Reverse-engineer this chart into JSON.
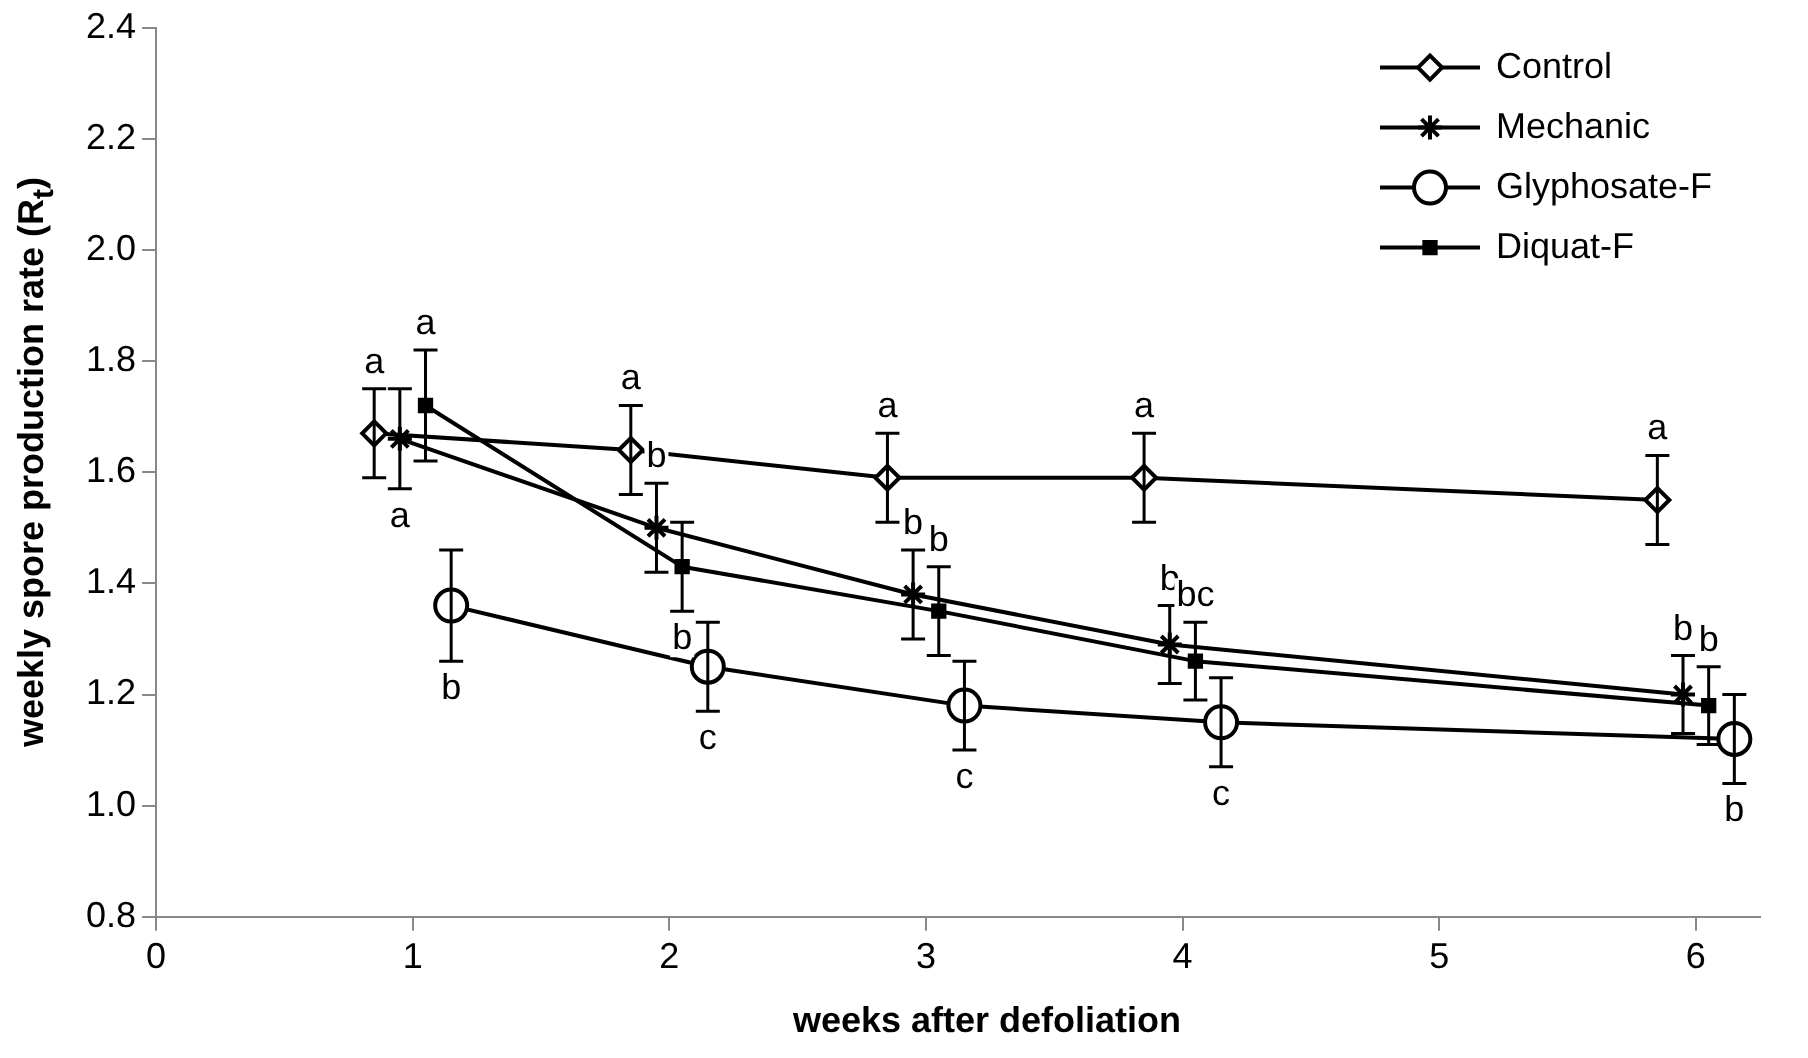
{
  "chart_data": {
    "type": "line",
    "xlabel": "weeks after defoliation",
    "ylabel": "weekly spore production rate (R$_{t}$)",
    "xlim": [
      0,
      6.25
    ],
    "xticks": [
      0,
      1,
      2,
      3,
      4,
      5,
      6
    ],
    "ylim": [
      0.8,
      2.4
    ],
    "yticks": [
      {
        "value": 0.8,
        "label": "0.8"
      },
      {
        "value": 1.0,
        "label": "1.0"
      },
      {
        "value": 1.2,
        "label": "1.2"
      },
      {
        "value": 1.4,
        "label": "1.4"
      },
      {
        "value": 1.6,
        "label": "1.6"
      },
      {
        "value": 1.8,
        "label": "1.8"
      },
      {
        "value": 2.0,
        "label": "2.0"
      },
      {
        "value": 2.2,
        "label": "2.2"
      },
      {
        "value": 2.4,
        "label": "2.4"
      }
    ],
    "grid": false,
    "legend": "top right",
    "line_style": "solid",
    "series": [
      {
        "name": "Control",
        "color": "#000000",
        "marker": "diamond",
        "x": [
          0.85,
          1.85,
          2.85,
          3.85,
          5.85
        ],
        "values": [
          1.67,
          1.64,
          1.59,
          1.59,
          1.55
        ],
        "errors": [
          0.08,
          0.08,
          0.08,
          0.08,
          0.08
        ]
      },
      {
        "name": "Mechanic",
        "color": "#000000",
        "marker": "cross",
        "x": [
          0.95,
          1.95,
          2.95,
          3.95,
          5.95
        ],
        "values": [
          1.66,
          1.5,
          1.38,
          1.29,
          1.2
        ],
        "errors": [
          0.09,
          0.08,
          0.08,
          0.07,
          0.07
        ]
      },
      {
        "name": "Glyphosate-F",
        "color": "#000000",
        "marker": "circle",
        "x": [
          1.15,
          2.15,
          3.15,
          4.15,
          6.15
        ],
        "values": [
          1.36,
          1.25,
          1.18,
          1.15,
          1.12
        ],
        "errors": [
          0.1,
          0.08,
          0.08,
          0.08,
          0.08
        ]
      },
      {
        "name": "Diquat-F",
        "color": "#000000",
        "marker": "square",
        "x": [
          1.05,
          2.05,
          3.05,
          4.05,
          6.05
        ],
        "values": [
          1.72,
          1.43,
          1.35,
          1.26,
          1.18
        ],
        "errors": [
          0.1,
          0.08,
          0.08,
          0.07,
          0.07
        ]
      }
    ],
    "annotations": [
      {
        "text": "a",
        "x": 0.85,
        "y": 1.75
      },
      {
        "text": "a",
        "x": 1.85,
        "y": 1.72
      },
      {
        "text": "a",
        "x": 2.85,
        "y": 1.67
      },
      {
        "text": "a",
        "x": 3.85,
        "y": 1.67
      },
      {
        "text": "a",
        "x": 5.85,
        "y": 1.63
      },
      {
        "text": "a",
        "x": 0.95,
        "y": 1.57
      },
      {
        "text": "b",
        "x": 1.95,
        "y": 1.58
      },
      {
        "text": "b",
        "x": 2.95,
        "y": 1.46
      },
      {
        "text": "b",
        "x": 3.95,
        "y": 1.36
      },
      {
        "text": "b",
        "x": 5.95,
        "y": 1.27
      },
      {
        "text": "a",
        "x": 1.05,
        "y": 1.82
      },
      {
        "text": "b",
        "x": 2.05,
        "y": 1.35
      },
      {
        "text": "b",
        "x": 3.05,
        "y": 1.43
      },
      {
        "text": "bc",
        "x": 4.05,
        "y": 1.33
      },
      {
        "text": "b",
        "x": 6.05,
        "y": 1.25
      },
      {
        "text": "b",
        "x": 1.15,
        "y": 1.26
      },
      {
        "text": "c",
        "x": 2.15,
        "y": 1.17
      },
      {
        "text": "c",
        "x": 3.15,
        "y": 1.1
      },
      {
        "text": "c",
        "x": 4.15,
        "y": 1.07
      },
      {
        "text": "b",
        "x": 6.15,
        "y": 1.04
      }
    ]
  }
}
